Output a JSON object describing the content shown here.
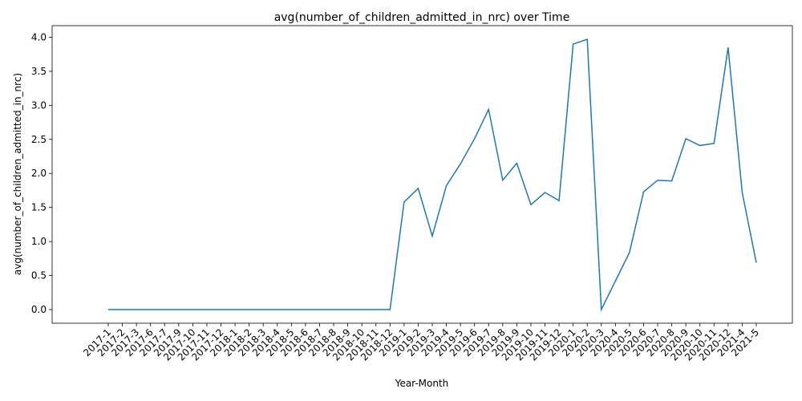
{
  "chart_data": {
    "type": "line",
    "title": "avg(number_of_children_admitted_in_nrc) over Time",
    "x_label": "Year-Month",
    "y_label": "avg(number_of_children_admitted_in_nrc)",
    "categories": [
      "2017-1",
      "2017-2",
      "2017-3",
      "2017-6",
      "2017-7",
      "2017-9",
      "2017-10",
      "2017-11",
      "2017-12",
      "2018-1",
      "2018-2",
      "2018-3",
      "2018-4",
      "2018-5",
      "2018-6",
      "2018-7",
      "2018-8",
      "2018-9",
      "2018-10",
      "2018-11",
      "2018-12",
      "2019-1",
      "2019-2",
      "2019-3",
      "2019-4",
      "2019-5",
      "2019-6",
      "2019-7",
      "2019-8",
      "2019-9",
      "2019-10",
      "2019-11",
      "2019-12",
      "2020-1",
      "2020-2",
      "2020-3",
      "2020-4",
      "2020-5",
      "2020-6",
      "2020-7",
      "2020-8",
      "2020-9",
      "2020-10",
      "2020-11",
      "2020-12",
      "2021-4",
      "2021-5"
    ],
    "series": [
      {
        "color": "#1f77b4",
        "values": [
          0,
          0,
          0,
          0,
          0,
          0,
          0,
          0,
          0,
          0,
          0,
          0,
          0,
          0,
          0,
          0,
          0,
          0,
          0,
          0,
          0,
          1.58,
          1.78,
          1.08,
          1.82,
          2.14,
          2.51,
          2.94,
          1.9,
          2.15,
          1.54,
          1.72,
          1.6,
          3.9,
          3.97,
          0.0,
          0.42,
          0.84,
          1.73,
          1.9,
          1.89,
          2.51,
          2.41,
          2.44,
          3.85,
          1.72,
          0.69
        ]
      }
    ],
    "ylim": [
      -0.2,
      4.17
    ],
    "yticks": [
      {
        "value": 0,
        "label": "0.0"
      },
      {
        "value": 0.5,
        "label": "0.5"
      },
      {
        "value": 1,
        "label": "1.0"
      },
      {
        "value": 1.5,
        "label": "1.5"
      },
      {
        "value": 2,
        "label": "2.0"
      },
      {
        "value": 2.5,
        "label": "2.5"
      },
      {
        "value": 3,
        "label": "3.0"
      },
      {
        "value": 3.5,
        "label": "3.5"
      },
      {
        "value": 4,
        "label": "4.0"
      }
    ]
  }
}
